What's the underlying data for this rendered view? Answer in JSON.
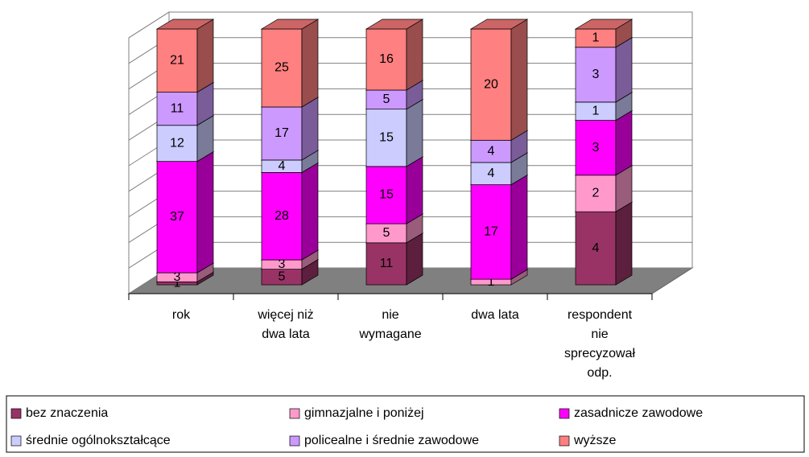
{
  "chart_data": {
    "type": "bar",
    "stacking": "percent",
    "grid": true,
    "categories": [
      "rok",
      "więcej niż\ndwa lata",
      "nie\nwymagane",
      "dwa lata",
      "respondent\nnie\nsprecyzował\nodp."
    ],
    "series": [
      {
        "name": "bez znaczenia",
        "color": "#993366",
        "values": [
          1,
          5,
          11,
          null,
          4
        ]
      },
      {
        "name": "gimnazjalne i poniżej",
        "color": "#ff99cc",
        "values": [
          3,
          3,
          5,
          1,
          2
        ]
      },
      {
        "name": "zasadnicze zawodowe",
        "color": "#ff00ff",
        "values": [
          37,
          28,
          15,
          17,
          3
        ]
      },
      {
        "name": "średnie ogólnokształcące",
        "color": "#ccccff",
        "values": [
          12,
          4,
          15,
          4,
          1
        ]
      },
      {
        "name": "policealne i średnie zawodowe",
        "color": "#cc99ff",
        "values": [
          11,
          17,
          5,
          4,
          3
        ]
      },
      {
        "name": "wyższe",
        "color": "#ff8080",
        "values": [
          21,
          25,
          16,
          20,
          1
        ]
      }
    ]
  }
}
